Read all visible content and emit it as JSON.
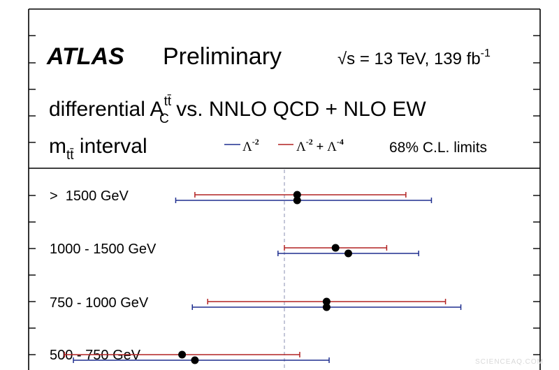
{
  "header": {
    "experiment": "ATLAS",
    "status": "Preliminary",
    "energy_lumi_prefix": "√s = 13 TeV, 139 fb",
    "energy_lumi_sup": "-1",
    "line2_prefix": "differential A",
    "line2_sup": "tt̄",
    "line2_sub": "C",
    "line2_suffix": " vs. NNLO QCD + NLO EW",
    "line3_main": "m",
    "line3_sub": "tt̄",
    "line3_suffix": " interval"
  },
  "legend": {
    "entries": [
      {
        "label_main": "Λ",
        "label_sup": "-2",
        "color": "#1f2f8f"
      },
      {
        "label_main": "Λ",
        "label_sup": "-2",
        "label_plus": " + ",
        "label_main2": "Λ",
        "label_sup2": "-4",
        "color": "#b22222"
      }
    ],
    "note": "68% C.L. limits"
  },
  "watermark": "SCIENCEAQ.COM",
  "chart_data": {
    "type": "scatter",
    "categories": [
      ">  1500 GeV",
      "1000 - 1500 GeV",
      "750 - 1000 GeV",
      "500 - 750 GeV"
    ],
    "reference_value": 0,
    "xlim": [
      -2.0,
      2.0
    ],
    "series": [
      {
        "name": "Λ-2",
        "color": "#1f2f8f",
        "points": [
          {
            "category": ">  1500 GeV",
            "value": 0.1,
            "err_low": 0.95,
            "err_high": 1.05
          },
          {
            "category": "1000 - 1500 GeV",
            "value": 0.5,
            "err_low": 0.55,
            "err_high": 0.55
          },
          {
            "category": "750 - 1000 GeV",
            "value": 0.33,
            "err_low": 1.05,
            "err_high": 1.05
          },
          {
            "category": "500 - 750 GeV",
            "value": -0.7,
            "err_low": 0.95,
            "err_high": 1.05
          }
        ]
      },
      {
        "name": "Λ-2 + Λ-4",
        "color": "#b22222",
        "points": [
          {
            "category": ">  1500 GeV",
            "value": 0.1,
            "err_low": 0.8,
            "err_high": 0.85
          },
          {
            "category": "1000 - 1500 GeV",
            "value": 0.4,
            "err_low": 0.4,
            "err_high": 0.4
          },
          {
            "category": "750 - 1000 GeV",
            "value": 0.33,
            "err_low": 0.93,
            "err_high": 0.93
          },
          {
            "category": "500 - 750 GeV",
            "value": -0.8,
            "err_low": 0.92,
            "err_high": 0.92
          }
        ]
      }
    ]
  }
}
